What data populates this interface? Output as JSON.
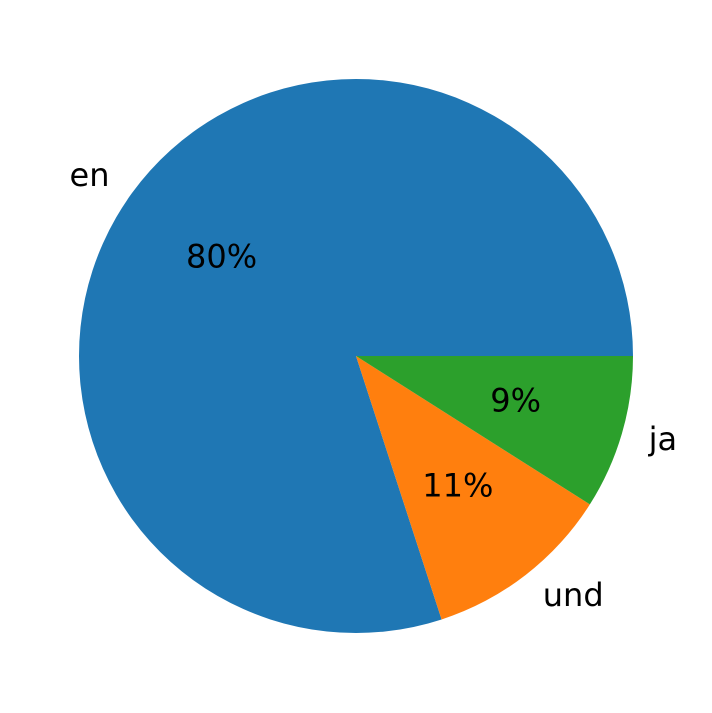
{
  "chart_data": {
    "type": "pie",
    "categories": [
      "en",
      "und",
      "ja"
    ],
    "values": [
      80,
      11,
      9
    ],
    "value_labels": [
      "80%",
      "11%",
      "9%"
    ],
    "colors": [
      "#1f77b4",
      "#ff7f0e",
      "#2ca02c"
    ]
  }
}
